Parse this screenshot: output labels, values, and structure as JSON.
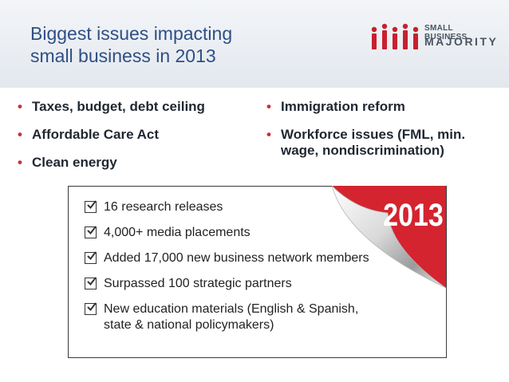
{
  "header": {
    "title_line1": "Biggest issues impacting",
    "title_line2": "small business in 2013"
  },
  "logo": {
    "line1": "SMALL BUSINESS",
    "line2": "MAJORITY",
    "brand_red": "#c8202e",
    "text_gray": "#4a5560"
  },
  "issues_left": [
    "Taxes, budget, debt ceiling",
    "Affordable Care Act",
    "Clean energy"
  ],
  "issues_right": [
    "Immigration reform",
    "Workforce issues (FML, min. wage, nondiscrimination)"
  ],
  "bullet_glyph": "•",
  "achievements": [
    "16 research releases",
    "4,000+ media placements",
    "Added 17,000 new business network members",
    "Surpassed 100 strategic partners",
    "New education materials (English & Spanish, state & national policymakers)"
  ],
  "year_badge": "2013",
  "colors": {
    "title_blue": "#2e4f86",
    "bullet_red": "#c8303b",
    "badge_red": "#d42430"
  }
}
